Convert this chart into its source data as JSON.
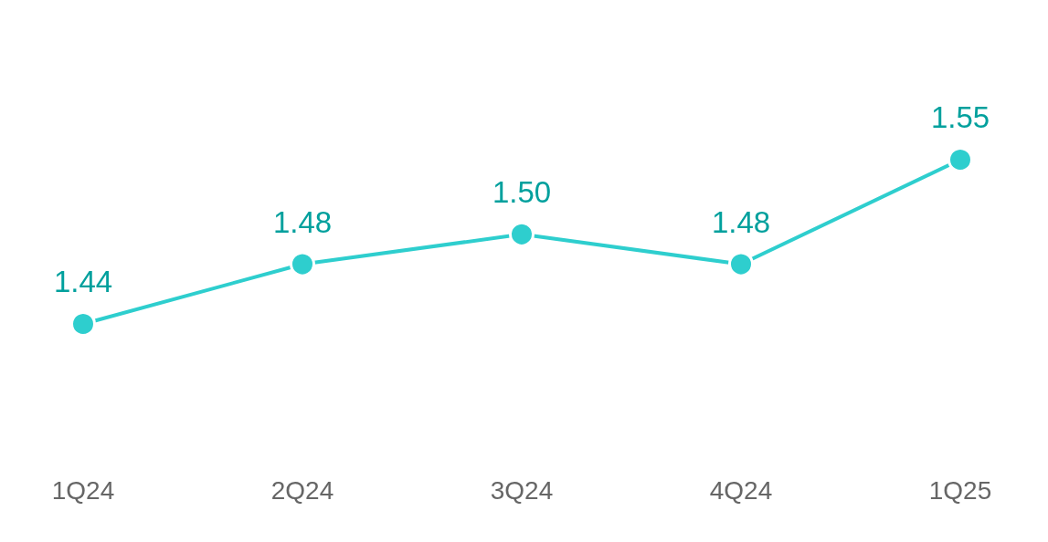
{
  "chart_data": {
    "type": "line",
    "categories": [
      "1Q24",
      "2Q24",
      "3Q24",
      "4Q24",
      "1Q25"
    ],
    "series": [
      {
        "color": "#2ecece",
        "values": [
          1.44,
          1.48,
          1.5,
          1.48,
          1.55
        ],
        "value_labels": [
          "1.44",
          "1.48",
          "1.50",
          "1.48",
          "1.55"
        ]
      }
    ],
    "marker": "circle",
    "line_style": "solid",
    "grid": false,
    "tick_labels": "x"
  }
}
